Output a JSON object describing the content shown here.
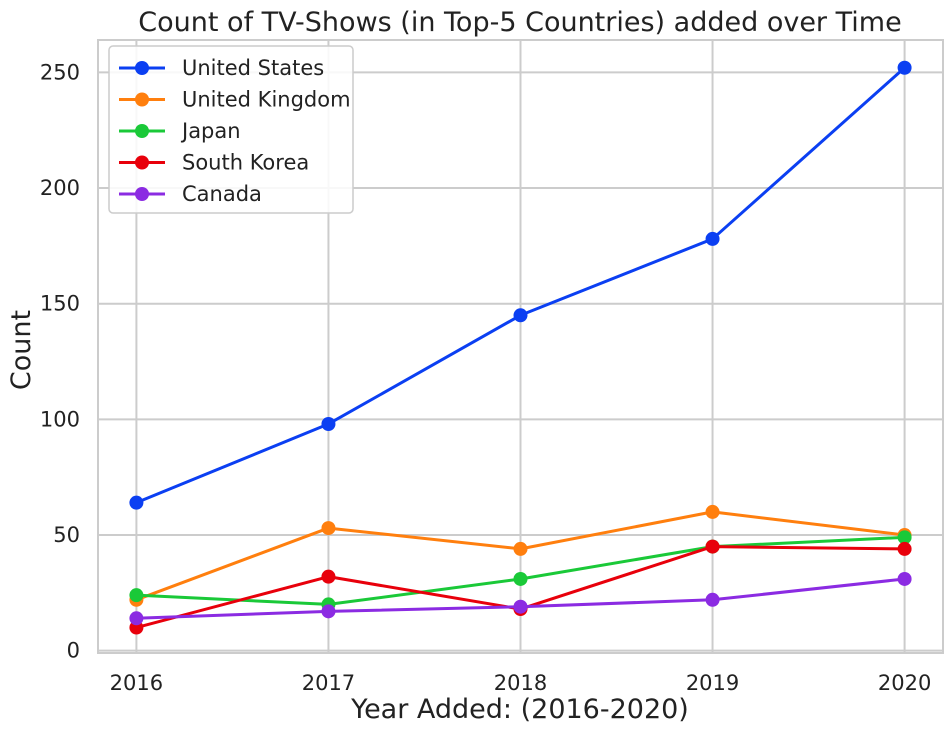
{
  "chart_data": {
    "type": "line",
    "title": "Count of TV-Shows (in Top-5 Countries) added over Time",
    "xlabel": "Year Added: (2016-2020)",
    "ylabel": "Count",
    "x": [
      2016,
      2017,
      2018,
      2019,
      2020
    ],
    "x_tick_labels": [
      "2016",
      "2017",
      "2018",
      "2019",
      "2020"
    ],
    "y_ticks": [
      0,
      50,
      100,
      150,
      200,
      250
    ],
    "y_tick_labels": [
      "0",
      "50",
      "100",
      "150",
      "200",
      "250"
    ],
    "xlim": [
      2015.8,
      2020.2
    ],
    "ylim": [
      -1,
      264
    ],
    "grid": true,
    "legend_position": "top-left",
    "series": [
      {
        "name": "United States",
        "color": "#0b3ff2",
        "values": [
          64,
          98,
          145,
          178,
          252
        ]
      },
      {
        "name": "United Kingdom",
        "color": "#ff7f0e",
        "values": [
          22,
          53,
          44,
          60,
          50
        ]
      },
      {
        "name": "Japan",
        "color": "#1ac938",
        "values": [
          24,
          20,
          31,
          45,
          49
        ]
      },
      {
        "name": "South Korea",
        "color": "#e8000b",
        "values": [
          10,
          32,
          18,
          45,
          44
        ]
      },
      {
        "name": "Canada",
        "color": "#8b2be2",
        "values": [
          14,
          17,
          19,
          22,
          31
        ]
      }
    ]
  }
}
